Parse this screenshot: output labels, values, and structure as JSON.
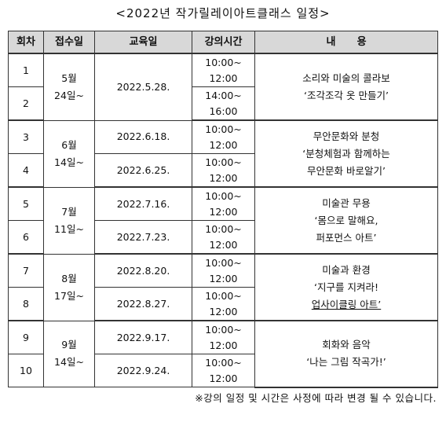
{
  "title": "<2022년 작가릴레이아트클래스 일정>",
  "table": {
    "headers": {
      "session": "회차",
      "registration": "접수일",
      "date": "교육일",
      "time": "강의시간",
      "content": "내      용"
    },
    "groups": [
      {
        "registration": [
          "5월",
          "24일~"
        ],
        "content": [
          "소리와 미술의 콜라보",
          "‘조각조각 옷 만들기’"
        ],
        "sessions": [
          {
            "no": "1",
            "date": "2022.5.28.",
            "time": [
              "10:00~",
              "12:00"
            ]
          },
          {
            "no": "2",
            "date": "",
            "time": [
              "14:00~",
              "16:00"
            ]
          }
        ]
      },
      {
        "registration": [
          "6월",
          "14일~"
        ],
        "content": [
          "무안문화와 분청",
          "‘분청체험과 함께하는",
          "무안문화 바로알기’"
        ],
        "sessions": [
          {
            "no": "3",
            "date": "2022.6.18.",
            "time": [
              "10:00~",
              "12:00"
            ]
          },
          {
            "no": "4",
            "date": "2022.6.25.",
            "time": [
              "10:00~",
              "12:00"
            ]
          }
        ]
      },
      {
        "registration": [
          "7월",
          "11일~"
        ],
        "content": [
          "미술관 무용",
          "‘몸으로 말해요,",
          "퍼포먼스 아트’"
        ],
        "sessions": [
          {
            "no": "5",
            "date": "2022.7.16.",
            "time": [
              "10:00~",
              "12:00"
            ]
          },
          {
            "no": "6",
            "date": "2022.7.23.",
            "time": [
              "10:00~",
              "12:00"
            ]
          }
        ]
      },
      {
        "registration": [
          "8월",
          "17일~"
        ],
        "content": [
          "미술과 환경",
          "‘지구를 지켜라!",
          "업사이클링 아트’"
        ],
        "sessions": [
          {
            "no": "7",
            "date": "2022.8.20.",
            "time": [
              "10:00~",
              "12:00"
            ]
          },
          {
            "no": "8",
            "date": "2022.8.27.",
            "time": [
              "10:00~",
              "12:00"
            ]
          }
        ]
      },
      {
        "registration": [
          "9월",
          "14일~"
        ],
        "content": [
          "회화와 음악",
          "‘나는 그림 작곡가!’"
        ],
        "sessions": [
          {
            "no": "9",
            "date": "2022.9.17.",
            "time": [
              "10:00~",
              "12:00"
            ]
          },
          {
            "no": "10",
            "date": "2022.9.24.",
            "time": [
              "10:00~",
              "12:00"
            ]
          }
        ]
      }
    ]
  },
  "note": "※강의 일정 및 시간은 사정에 따라 변경 될 수 있습니다."
}
